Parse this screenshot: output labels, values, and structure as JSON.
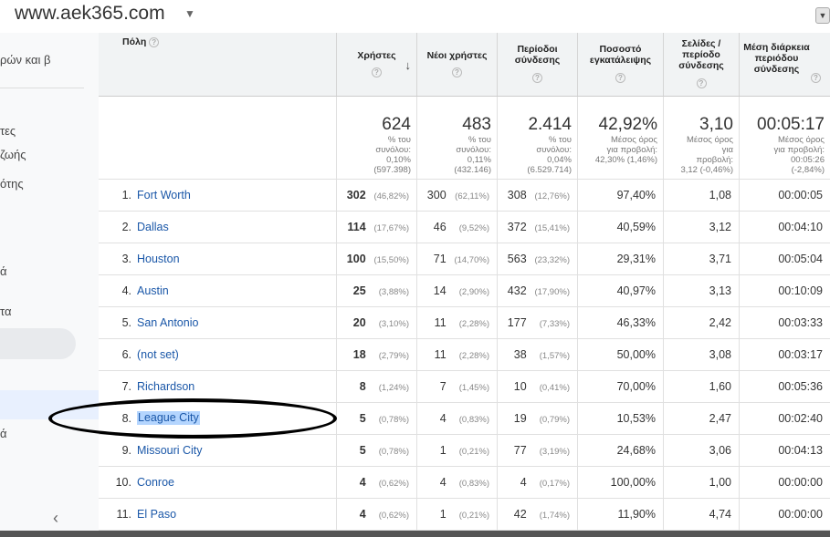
{
  "header": {
    "site": "www.aek365.com",
    "collapse_icon": "chevron-down-icon"
  },
  "sidebar": {
    "header_fragment": "ρών και β",
    "fragments": [
      "τες",
      "ζωής",
      "ότης",
      "ά",
      "τα",
      "ά"
    ],
    "collapse_icon": "chevron-left-icon"
  },
  "columns": [
    {
      "label": "Πόλη"
    },
    {
      "label": "Χρήστες"
    },
    {
      "label": "Νέοι χρήστες"
    },
    {
      "label": "Περίοδοι σύνδεσης"
    },
    {
      "label": "Ποσοστό εγκατάλειψης"
    },
    {
      "label": "Σελίδες / περίοδο σύνδεσης"
    },
    {
      "label": "Μέση διάρκεια περιόδου σύνδεσης"
    }
  ],
  "help_icon": "?",
  "totals": [
    {
      "value": "624",
      "lines": [
        "% του",
        "συνόλου:",
        "0,10%",
        "(597.398)"
      ]
    },
    {
      "value": "483",
      "lines": [
        "% του",
        "συνόλου:",
        "0,11%",
        "(432.146)"
      ]
    },
    {
      "value": "2.414",
      "lines": [
        "% του",
        "συνόλου:",
        "0,04%",
        "(6.529.714)"
      ]
    },
    {
      "value": "42,92%",
      "lines": [
        "Μέσος όρος",
        "για προβολή:",
        "42,30% (1,46%)"
      ]
    },
    {
      "value": "3,10",
      "lines": [
        "Μέσος όρος",
        "για",
        "προβολή:",
        "3,12 (-0,46%)"
      ]
    },
    {
      "value": "00:05:17",
      "lines": [
        "Μέσος όρος",
        "για προβολή:",
        "00:05:26",
        "(-2,84%)"
      ]
    }
  ],
  "rows": [
    {
      "idx": "1.",
      "city": "Fort Worth",
      "users": "302",
      "users_pct": "(46,82%)",
      "new": "300",
      "new_pct": "(62,11%)",
      "sess": "308",
      "sess_pct": "(12,76%)",
      "bounce": "97,40%",
      "pages": "1,08",
      "dur": "00:00:05"
    },
    {
      "idx": "2.",
      "city": "Dallas",
      "users": "114",
      "users_pct": "(17,67%)",
      "new": "46",
      "new_pct": "(9,52%)",
      "sess": "372",
      "sess_pct": "(15,41%)",
      "bounce": "40,59%",
      "pages": "3,12",
      "dur": "00:04:10"
    },
    {
      "idx": "3.",
      "city": "Houston",
      "users": "100",
      "users_pct": "(15,50%)",
      "new": "71",
      "new_pct": "(14,70%)",
      "sess": "563",
      "sess_pct": "(23,32%)",
      "bounce": "29,31%",
      "pages": "3,71",
      "dur": "00:05:04"
    },
    {
      "idx": "4.",
      "city": "Austin",
      "users": "25",
      "users_pct": "(3,88%)",
      "new": "14",
      "new_pct": "(2,90%)",
      "sess": "432",
      "sess_pct": "(17,90%)",
      "bounce": "40,97%",
      "pages": "3,13",
      "dur": "00:10:09"
    },
    {
      "idx": "5.",
      "city": "San Antonio",
      "users": "20",
      "users_pct": "(3,10%)",
      "new": "11",
      "new_pct": "(2,28%)",
      "sess": "177",
      "sess_pct": "(7,33%)",
      "bounce": "46,33%",
      "pages": "2,42",
      "dur": "00:03:33"
    },
    {
      "idx": "6.",
      "city": "(not set)",
      "users": "18",
      "users_pct": "(2,79%)",
      "new": "11",
      "new_pct": "(2,28%)",
      "sess": "38",
      "sess_pct": "(1,57%)",
      "bounce": "50,00%",
      "pages": "3,08",
      "dur": "00:03:17"
    },
    {
      "idx": "7.",
      "city": "Richardson",
      "users": "8",
      "users_pct": "(1,24%)",
      "new": "7",
      "new_pct": "(1,45%)",
      "sess": "10",
      "sess_pct": "(0,41%)",
      "bounce": "70,00%",
      "pages": "1,60",
      "dur": "00:05:36"
    },
    {
      "idx": "8.",
      "city": "League City",
      "users": "5",
      "users_pct": "(0,78%)",
      "new": "4",
      "new_pct": "(0,83%)",
      "sess": "19",
      "sess_pct": "(0,79%)",
      "bounce": "10,53%",
      "pages": "2,47",
      "dur": "00:02:40"
    },
    {
      "idx": "9.",
      "city": "Missouri City",
      "users": "5",
      "users_pct": "(0,78%)",
      "new": "1",
      "new_pct": "(0,21%)",
      "sess": "77",
      "sess_pct": "(3,19%)",
      "bounce": "24,68%",
      "pages": "3,06",
      "dur": "00:04:13"
    },
    {
      "idx": "10.",
      "city": "Conroe",
      "users": "4",
      "users_pct": "(0,62%)",
      "new": "4",
      "new_pct": "(0,83%)",
      "sess": "4",
      "sess_pct": "(0,17%)",
      "bounce": "100,00%",
      "pages": "1,00",
      "dur": "00:00:00"
    },
    {
      "idx": "11.",
      "city": "El Paso",
      "users": "4",
      "users_pct": "(0,62%)",
      "new": "1",
      "new_pct": "(0,21%)",
      "sess": "42",
      "sess_pct": "(1,74%)",
      "bounce": "11,90%",
      "pages": "4,74",
      "dur": "00:00:00"
    }
  ]
}
